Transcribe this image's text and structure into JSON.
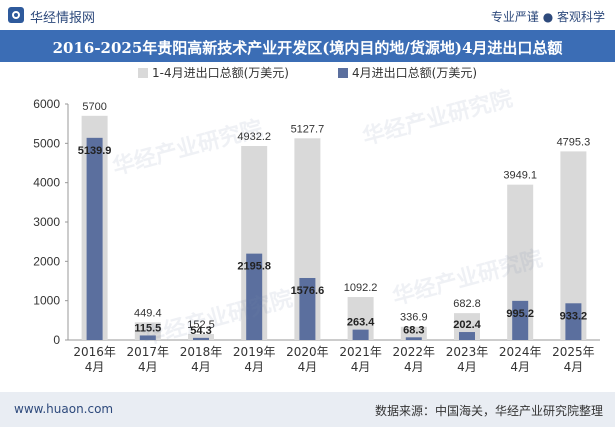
{
  "header": {
    "brand": "华经情报网",
    "slogan": "专业严谨 ● 客观科学",
    "title": "2016-2025年贵阳高新技术产业开发区(境内目的地/货源地)4月进出口总额"
  },
  "footer": {
    "left": "www.huaon.com",
    "right": "数据来源：中国海关，华经产业研究院整理"
  },
  "watermarks": [
    "华经产业研究院",
    "www.huaon.com"
  ],
  "colors": {
    "series1": "#d9d9d9",
    "series2": "#5b6f9e",
    "title_bg": "#3b6db5"
  },
  "chart_data": {
    "type": "bar",
    "categories": [
      "2016年\n4月",
      "2017年\n4月",
      "2018年\n4月",
      "2019年\n4月",
      "2020年\n4月",
      "2021年\n4月",
      "2022年\n4月",
      "2023年\n4月",
      "2024年\n4月",
      "2025年\n4月"
    ],
    "series": [
      {
        "name": "1-4月进出口总额(万美元)",
        "values": [
          5700,
          449.4,
          152.5,
          4932.2,
          5127.7,
          1092.2,
          336.9,
          682.8,
          3949.1,
          4795.3
        ]
      },
      {
        "name": "4月进出口总额(万美元)",
        "values": [
          5139.9,
          115.5,
          54.3,
          2195.8,
          1576.6,
          263.4,
          68.3,
          202.4,
          995.2,
          933.2
        ]
      }
    ],
    "labels_series1": [
      "5700",
      "449.4",
      "152.5",
      "4932.2",
      "5127.7",
      "1092.2",
      "336.9",
      "682.8",
      "3949.1",
      "4795.3"
    ],
    "labels_series2": [
      "5139.9",
      "115.5",
      "54.3",
      "2195.8",
      "1576.6",
      "263.4",
      "68.3",
      "202.4",
      "995.2",
      "933.2"
    ],
    "yticks": [
      "0",
      "1000",
      "2000",
      "3000",
      "4000",
      "5000",
      "6000"
    ],
    "ylim": [
      0,
      6000
    ],
    "legend_position": "top-center",
    "grid": false
  }
}
